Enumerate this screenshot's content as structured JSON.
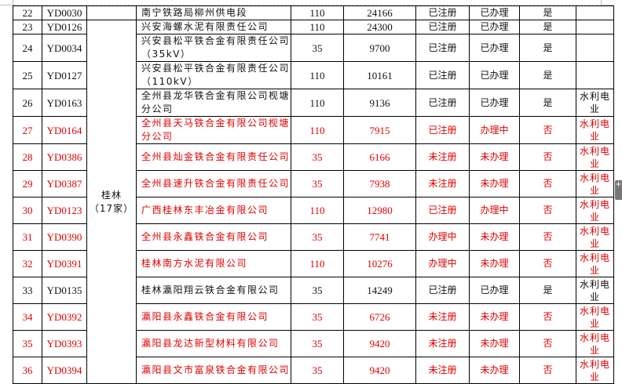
{
  "region_label": "桂林\n（17家）",
  "colors": {
    "red": "#e00000",
    "black": "#111111"
  },
  "rows": [
    {
      "no": "22",
      "code": "YD0030",
      "name": "南宁铁路局柳州供电段",
      "kv": "110",
      "cap": "24166",
      "reg": "已注册",
      "proc": "已办理",
      "ok": "是",
      "note": "",
      "red": false
    },
    {
      "no": "23",
      "code": "YD0126",
      "name": "兴安海螺水泥有限责任公司",
      "kv": "110",
      "cap": "24300",
      "reg": "已注册",
      "proc": "已办理",
      "ok": "是",
      "note": "",
      "red": false
    },
    {
      "no": "24",
      "code": "YD0034",
      "name": "兴安县松平铁合金有限责任公司（35kV）",
      "kv": "35",
      "cap": "9700",
      "reg": "已注册",
      "proc": "已办理",
      "ok": "是",
      "note": "",
      "red": false
    },
    {
      "no": "25",
      "code": "YD0127",
      "name": "兴安县松平铁合金有限责任公司（110kV）",
      "kv": "110",
      "cap": "10161",
      "reg": "已注册",
      "proc": "已办理",
      "ok": "是",
      "note": "",
      "red": false
    },
    {
      "no": "26",
      "code": "YD0163",
      "name": "全州县龙华铁合金有限公司枧塘分公司",
      "kv": "110",
      "cap": "9136",
      "reg": "已注册",
      "proc": "已办理",
      "ok": "是",
      "note": "水利电业",
      "red": false
    },
    {
      "no": "27",
      "code": "YD0164",
      "name": "全州县天马铁合金有限公司枧塘分公司",
      "kv": "110",
      "cap": "7915",
      "reg": "已注册",
      "proc": "办理中",
      "ok": "否",
      "note": "水利电业",
      "red": true
    },
    {
      "no": "28",
      "code": "YD0386",
      "name": "全州县灿金铁合金有限责任公司",
      "kv": "35",
      "cap": "6166",
      "reg": "未注册",
      "proc": "未办理",
      "ok": "否",
      "note": "水利电业",
      "red": true
    },
    {
      "no": "29",
      "code": "YD0387",
      "name": "全州县速升铁合金有限责任公司",
      "kv": "35",
      "cap": "7938",
      "reg": "未注册",
      "proc": "未办理",
      "ok": "否",
      "note": "水利电业",
      "red": true
    },
    {
      "no": "30",
      "code": "YD0123",
      "name": "广西桂林东丰冶金有限公司",
      "kv": "110",
      "cap": "12980",
      "reg": "已注册",
      "proc": "办理中",
      "ok": "否",
      "note": "水利电业",
      "red": true
    },
    {
      "no": "31",
      "code": "YD0390",
      "name": "全州县永鑫铁合金有限公司",
      "kv": "35",
      "cap": "7741",
      "reg": "办理中",
      "proc": "未办理",
      "ok": "否",
      "note": "水利电业",
      "red": true
    },
    {
      "no": "32",
      "code": "YD0391",
      "name": "桂林南方水泥有限公司",
      "kv": "110",
      "cap": "10276",
      "reg": "办理中",
      "proc": "未办理",
      "ok": "否",
      "note": "水利电业",
      "red": true
    },
    {
      "no": "33",
      "code": "YD0135",
      "name": "桂林瀛阳翔云铁合金有限公司",
      "kv": "35",
      "cap": "14249",
      "reg": "已注册",
      "proc": "已办理",
      "ok": "是",
      "note": "水利电业",
      "red": false
    },
    {
      "no": "34",
      "code": "YD0392",
      "name": "瀛阳县永鑫铁合金有限公司",
      "kv": "35",
      "cap": "6726",
      "reg": "未注册",
      "proc": "未办理",
      "ok": "否",
      "note": "水利电业",
      "red": true
    },
    {
      "no": "35",
      "code": "YD0393",
      "name": "瀛阳县龙达新型材料有限公司",
      "kv": "35",
      "cap": "9420",
      "reg": "未注册",
      "proc": "未办理",
      "ok": "否",
      "note": "水利电业",
      "red": true
    },
    {
      "no": "36",
      "code": "YD0394",
      "name": "瀛阳县文市富泉铁合金有限公司",
      "kv": "35",
      "cap": "9420",
      "reg": "未注册",
      "proc": "未办理",
      "ok": "否",
      "note": "水利电业",
      "red": true
    }
  ],
  "handle_icon": "plus-icon"
}
